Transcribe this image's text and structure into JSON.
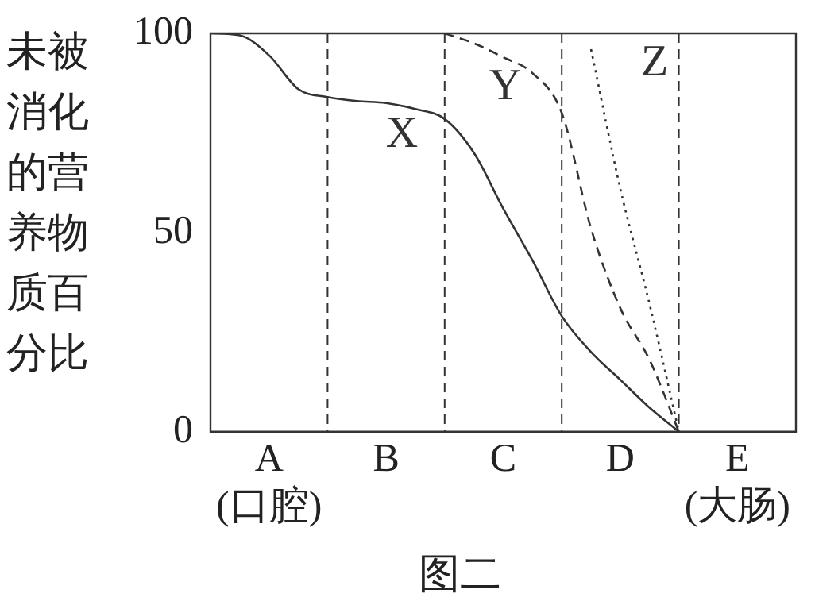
{
  "chart_data": {
    "type": "line",
    "title": "图二",
    "ylabel": "未被消化的营养物质百分比",
    "categories": [
      null,
      null,
      "A\n(口腔)",
      null,
      null,
      null,
      "B",
      null,
      null,
      null,
      "C",
      null,
      null,
      null,
      "D",
      null,
      null,
      null,
      "E\n(大肠)",
      null,
      null
    ],
    "ylim": [
      0,
      100
    ],
    "yticks": [
      0,
      50,
      100
    ],
    "grid": "x",
    "legend": false,
    "marker": "none",
    "series": [
      {
        "name": "X",
        "color": "#333333",
        "line_style": "solid",
        "values": [
          100,
          99.5,
          94.5,
          86,
          84,
          83,
          82.5,
          81,
          78.5,
          70,
          56,
          43,
          29,
          20,
          13,
          6,
          0,
          null,
          null,
          null,
          null
        ]
      },
      {
        "name": "Y",
        "color": "#333333",
        "line_style": "dashed",
        "values": [
          null,
          null,
          null,
          null,
          null,
          null,
          null,
          null,
          100,
          97.5,
          94,
          90,
          80,
          51,
          31,
          18,
          0,
          null,
          null,
          null,
          null
        ]
      },
      {
        "name": "Z",
        "color": "#333333",
        "line_style": "dotted",
        "values": [
          null,
          null,
          null,
          null,
          null,
          null,
          null,
          null,
          null,
          null,
          null,
          null,
          null,
          96,
          61,
          32,
          0,
          null,
          null,
          null,
          null
        ]
      }
    ]
  }
}
